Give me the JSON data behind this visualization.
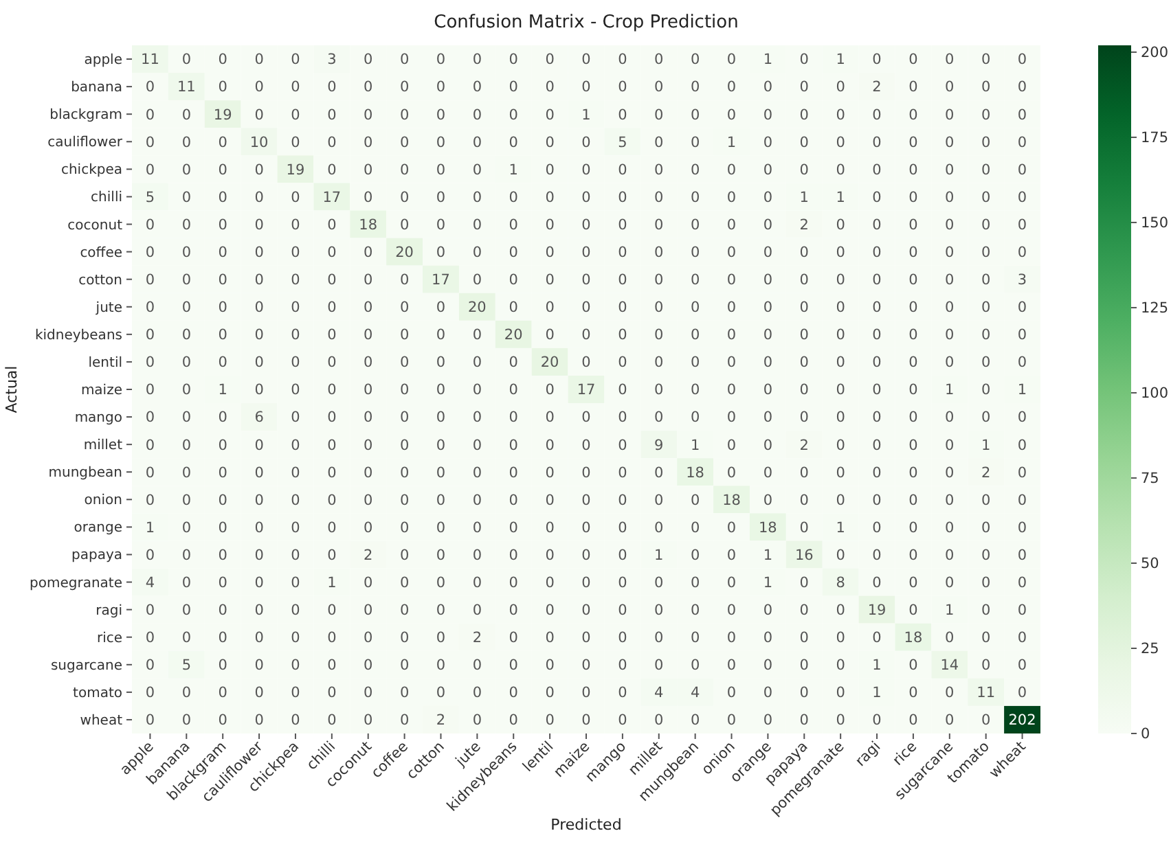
{
  "chart_data": {
    "type": "heatmap",
    "title": "Confusion Matrix - Crop Prediction",
    "xlabel": "Predicted",
    "ylabel": "Actual",
    "categories": [
      "apple",
      "banana",
      "blackgram",
      "cauliflower",
      "chickpea",
      "chilli",
      "coconut",
      "coffee",
      "cotton",
      "jute",
      "kidneybeans",
      "lentil",
      "maize",
      "mango",
      "millet",
      "mungbean",
      "onion",
      "orange",
      "papaya",
      "pomegranate",
      "ragi",
      "rice",
      "sugarcane",
      "tomato",
      "wheat"
    ],
    "y_categories": [
      "apple",
      "banana",
      "blackgram",
      "cauliflower",
      "chickpea",
      "chilli",
      "coconut",
      "coffee",
      "cotton",
      "jute",
      "kidneybeans",
      "lentil",
      "maize",
      "mango",
      "millet",
      "mungbean",
      "onion",
      "orange",
      "papaya",
      "pomegranate",
      "ragi",
      "rice",
      "sugarcane",
      "tomato",
      "wheat"
    ],
    "cells": [
      [
        11,
        0,
        0,
        0,
        0,
        3,
        0,
        0,
        0,
        0,
        0,
        0,
        0,
        0,
        0,
        0,
        0,
        1,
        0,
        1,
        0,
        0,
        0,
        0,
        0
      ],
      [
        0,
        11,
        0,
        0,
        0,
        0,
        0,
        0,
        0,
        0,
        0,
        0,
        0,
        0,
        0,
        0,
        0,
        0,
        0,
        0,
        2,
        0,
        0,
        0,
        0
      ],
      [
        0,
        0,
        19,
        0,
        0,
        0,
        0,
        0,
        0,
        0,
        0,
        0,
        1,
        0,
        0,
        0,
        0,
        0,
        0,
        0,
        0,
        0,
        0,
        0,
        0
      ],
      [
        0,
        0,
        0,
        10,
        0,
        0,
        0,
        0,
        0,
        0,
        0,
        0,
        0,
        5,
        0,
        0,
        1,
        0,
        0,
        0,
        0,
        0,
        0,
        0,
        0
      ],
      [
        0,
        0,
        0,
        0,
        19,
        0,
        0,
        0,
        0,
        0,
        1,
        0,
        0,
        0,
        0,
        0,
        0,
        0,
        0,
        0,
        0,
        0,
        0,
        0,
        0
      ],
      [
        5,
        0,
        0,
        0,
        0,
        17,
        0,
        0,
        0,
        0,
        0,
        0,
        0,
        0,
        0,
        0,
        0,
        0,
        1,
        1,
        0,
        0,
        0,
        0,
        0
      ],
      [
        0,
        0,
        0,
        0,
        0,
        0,
        18,
        0,
        0,
        0,
        0,
        0,
        0,
        0,
        0,
        0,
        0,
        0,
        2,
        0,
        0,
        0,
        0,
        0,
        0
      ],
      [
        0,
        0,
        0,
        0,
        0,
        0,
        0,
        20,
        0,
        0,
        0,
        0,
        0,
        0,
        0,
        0,
        0,
        0,
        0,
        0,
        0,
        0,
        0,
        0,
        0
      ],
      [
        0,
        0,
        0,
        0,
        0,
        0,
        0,
        0,
        17,
        0,
        0,
        0,
        0,
        0,
        0,
        0,
        0,
        0,
        0,
        0,
        0,
        0,
        0,
        0,
        3
      ],
      [
        0,
        0,
        0,
        0,
        0,
        0,
        0,
        0,
        0,
        20,
        0,
        0,
        0,
        0,
        0,
        0,
        0,
        0,
        0,
        0,
        0,
        0,
        0,
        0,
        0
      ],
      [
        0,
        0,
        0,
        0,
        0,
        0,
        0,
        0,
        0,
        0,
        20,
        0,
        0,
        0,
        0,
        0,
        0,
        0,
        0,
        0,
        0,
        0,
        0,
        0,
        0
      ],
      [
        0,
        0,
        0,
        0,
        0,
        0,
        0,
        0,
        0,
        0,
        0,
        20,
        0,
        0,
        0,
        0,
        0,
        0,
        0,
        0,
        0,
        0,
        0,
        0,
        0
      ],
      [
        0,
        0,
        1,
        0,
        0,
        0,
        0,
        0,
        0,
        0,
        0,
        0,
        17,
        0,
        0,
        0,
        0,
        0,
        0,
        0,
        0,
        0,
        1,
        0,
        1
      ],
      [
        0,
        0,
        0,
        6,
        0,
        0,
        0,
        0,
        0,
        0,
        0,
        0,
        0,
        0,
        0,
        0,
        0,
        0,
        0,
        0,
        0,
        0,
        0,
        0,
        0
      ],
      [
        0,
        0,
        0,
        0,
        0,
        0,
        0,
        0,
        0,
        0,
        0,
        0,
        0,
        0,
        9,
        1,
        0,
        0,
        2,
        0,
        0,
        0,
        0,
        1,
        0
      ],
      [
        0,
        0,
        0,
        0,
        0,
        0,
        0,
        0,
        0,
        0,
        0,
        0,
        0,
        0,
        0,
        18,
        0,
        0,
        0,
        0,
        0,
        0,
        0,
        2,
        0
      ],
      [
        0,
        0,
        0,
        0,
        0,
        0,
        0,
        0,
        0,
        0,
        0,
        0,
        0,
        0,
        0,
        0,
        18,
        0,
        0,
        0,
        0,
        0,
        0,
        0,
        0
      ],
      [
        1,
        0,
        0,
        0,
        0,
        0,
        0,
        0,
        0,
        0,
        0,
        0,
        0,
        0,
        0,
        0,
        0,
        18,
        0,
        1,
        0,
        0,
        0,
        0,
        0
      ],
      [
        0,
        0,
        0,
        0,
        0,
        0,
        2,
        0,
        0,
        0,
        0,
        0,
        0,
        0,
        1,
        0,
        0,
        1,
        16,
        0,
        0,
        0,
        0,
        0,
        0
      ],
      [
        4,
        0,
        0,
        0,
        0,
        1,
        0,
        0,
        0,
        0,
        0,
        0,
        0,
        0,
        0,
        0,
        0,
        1,
        0,
        8,
        0,
        0,
        0,
        0,
        0
      ],
      [
        0,
        0,
        0,
        0,
        0,
        0,
        0,
        0,
        0,
        0,
        0,
        0,
        0,
        0,
        0,
        0,
        0,
        0,
        0,
        0,
        19,
        0,
        1,
        0,
        0
      ],
      [
        0,
        0,
        0,
        0,
        0,
        0,
        0,
        0,
        0,
        2,
        0,
        0,
        0,
        0,
        0,
        0,
        0,
        0,
        0,
        0,
        0,
        18,
        0,
        0,
        0
      ],
      [
        0,
        5,
        0,
        0,
        0,
        0,
        0,
        0,
        0,
        0,
        0,
        0,
        0,
        0,
        0,
        0,
        0,
        0,
        0,
        0,
        1,
        0,
        14,
        0,
        0
      ],
      [
        0,
        0,
        0,
        0,
        0,
        0,
        0,
        0,
        0,
        0,
        0,
        0,
        0,
        0,
        4,
        4,
        0,
        0,
        0,
        0,
        1,
        0,
        0,
        11,
        0
      ],
      [
        0,
        0,
        0,
        0,
        0,
        0,
        0,
        0,
        2,
        0,
        0,
        0,
        0,
        0,
        0,
        0,
        0,
        0,
        0,
        0,
        0,
        0,
        0,
        0,
        202
      ]
    ],
    "clim": [
      0,
      202
    ],
    "cticks": [
      0,
      25,
      50,
      75,
      100,
      125,
      150,
      175,
      200
    ],
    "data_labels": true
  }
}
